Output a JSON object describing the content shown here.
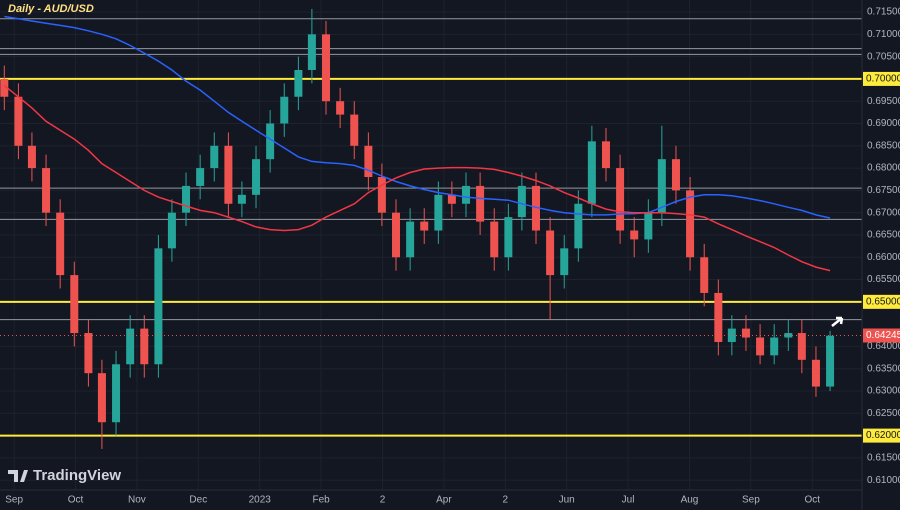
{
  "chart_data": {
    "type": "candlestick",
    "title": "Daily - AUD/USD",
    "brand": "TradingView",
    "grid": true,
    "up_color": "#26a69a",
    "down_color": "#ef5350",
    "xlim": [
      -0.23,
      13.81
    ],
    "ylim": [
      0.6078,
      0.7177
    ],
    "xticks": [
      {
        "value": 0,
        "label": "Sep"
      },
      {
        "value": 1,
        "label": "Oct"
      },
      {
        "value": 2,
        "label": "Nov"
      },
      {
        "value": 3,
        "label": "Dec"
      },
      {
        "value": 4,
        "label": "2023"
      },
      {
        "value": 5,
        "label": "Feb"
      },
      {
        "value": 6,
        "label": "2"
      },
      {
        "value": 7,
        "label": "Apr"
      },
      {
        "value": 8,
        "label": "2"
      },
      {
        "value": 9,
        "label": "Jun"
      },
      {
        "value": 10,
        "label": "Jul"
      },
      {
        "value": 11,
        "label": "Aug"
      },
      {
        "value": 12,
        "label": "Sep"
      },
      {
        "value": 13,
        "label": "Oct"
      }
    ],
    "yticks": [
      {
        "value": 0.715,
        "label": "0.71500"
      },
      {
        "value": 0.71,
        "label": "0.71000"
      },
      {
        "value": 0.705,
        "label": "0.70500"
      },
      {
        "value": 0.695,
        "label": "0.69500"
      },
      {
        "value": 0.69,
        "label": "0.69000"
      },
      {
        "value": 0.685,
        "label": "0.68500"
      },
      {
        "value": 0.68,
        "label": "0.68000"
      },
      {
        "value": 0.675,
        "label": "0.67500"
      },
      {
        "value": 0.67,
        "label": "0.67000"
      },
      {
        "value": 0.665,
        "label": "0.66500"
      },
      {
        "value": 0.66,
        "label": "0.66000"
      },
      {
        "value": 0.655,
        "label": "0.65500"
      },
      {
        "value": 0.64,
        "label": "0.64000"
      },
      {
        "value": 0.635,
        "label": "0.63500"
      },
      {
        "value": 0.63,
        "label": "0.63000"
      },
      {
        "value": 0.625,
        "label": "0.62500"
      },
      {
        "value": 0.615,
        "label": "0.61500"
      },
      {
        "value": 0.61,
        "label": "0.61000"
      }
    ],
    "key_levels": [
      {
        "value": 0.7,
        "label": "0.70000"
      },
      {
        "value": 0.65,
        "label": "0.65000"
      },
      {
        "value": 0.62,
        "label": "0.62000"
      }
    ],
    "key_level_color": "#ffeb3b",
    "reference_lines": [
      0.7135,
      0.7068,
      0.7055,
      0.6755,
      0.6685,
      0.646
    ],
    "last_price": {
      "value": 0.64245,
      "label": "0.64245"
    },
    "x": [
      -0.16,
      0.07,
      0.29,
      0.52,
      0.75,
      0.98,
      1.21,
      1.43,
      1.66,
      1.89,
      2.12,
      2.35,
      2.57,
      2.8,
      3.03,
      3.26,
      3.49,
      3.71,
      3.94,
      4.17,
      4.4,
      4.63,
      4.85,
      5.08,
      5.31,
      5.54,
      5.77,
      5.99,
      6.22,
      6.45,
      6.68,
      6.91,
      7.13,
      7.36,
      7.59,
      7.82,
      8.05,
      8.27,
      8.5,
      8.73,
      8.96,
      9.19,
      9.41,
      9.64,
      9.87,
      10.1,
      10.33,
      10.55,
      10.78,
      11.01,
      11.24,
      11.47,
      11.69,
      11.92,
      12.15,
      12.38,
      12.61,
      12.83,
      13.06,
      13.29
    ],
    "open": [
      0.7,
      0.696,
      0.685,
      0.68,
      0.67,
      0.656,
      0.643,
      0.634,
      0.623,
      0.636,
      0.644,
      0.636,
      0.662,
      0.67,
      0.676,
      0.68,
      0.685,
      0.672,
      0.674,
      0.682,
      0.69,
      0.696,
      0.702,
      0.71,
      0.695,
      0.692,
      0.685,
      0.678,
      0.67,
      0.66,
      0.668,
      0.666,
      0.674,
      0.672,
      0.676,
      0.668,
      0.66,
      0.669,
      0.676,
      0.666,
      0.656,
      0.662,
      0.672,
      0.686,
      0.68,
      0.666,
      0.664,
      0.67,
      0.682,
      0.675,
      0.66,
      0.652,
      0.641,
      0.644,
      0.642,
      0.638,
      0.642,
      0.643,
      0.637,
      0.631
    ],
    "high": [
      0.703,
      0.699,
      0.688,
      0.683,
      0.673,
      0.659,
      0.646,
      0.637,
      0.639,
      0.647,
      0.647,
      0.665,
      0.673,
      0.679,
      0.683,
      0.688,
      0.688,
      0.677,
      0.685,
      0.693,
      0.699,
      0.705,
      0.7157,
      0.713,
      0.698,
      0.695,
      0.688,
      0.681,
      0.673,
      0.671,
      0.671,
      0.677,
      0.677,
      0.679,
      0.679,
      0.671,
      0.672,
      0.679,
      0.679,
      0.669,
      0.665,
      0.675,
      0.6895,
      0.689,
      0.683,
      0.669,
      0.673,
      0.6895,
      0.685,
      0.678,
      0.663,
      0.655,
      0.647,
      0.647,
      0.645,
      0.645,
      0.646,
      0.646,
      0.64,
      0.6435
    ],
    "low": [
      0.693,
      0.682,
      0.677,
      0.667,
      0.653,
      0.64,
      0.631,
      0.617,
      0.62,
      0.633,
      0.633,
      0.633,
      0.659,
      0.667,
      0.673,
      0.677,
      0.669,
      0.669,
      0.671,
      0.679,
      0.687,
      0.693,
      0.699,
      0.692,
      0.689,
      0.682,
      0.675,
      0.667,
      0.657,
      0.657,
      0.663,
      0.663,
      0.669,
      0.669,
      0.665,
      0.657,
      0.657,
      0.666,
      0.663,
      0.646,
      0.653,
      0.659,
      0.669,
      0.677,
      0.663,
      0.66,
      0.661,
      0.667,
      0.672,
      0.657,
      0.649,
      0.638,
      0.638,
      0.639,
      0.636,
      0.636,
      0.639,
      0.634,
      0.6287,
      0.63
    ],
    "close": [
      0.696,
      0.685,
      0.68,
      0.67,
      0.656,
      0.643,
      0.634,
      0.623,
      0.636,
      0.644,
      0.636,
      0.662,
      0.67,
      0.676,
      0.68,
      0.685,
      0.672,
      0.674,
      0.682,
      0.69,
      0.696,
      0.702,
      0.71,
      0.695,
      0.692,
      0.685,
      0.678,
      0.67,
      0.66,
      0.668,
      0.666,
      0.674,
      0.672,
      0.676,
      0.668,
      0.66,
      0.669,
      0.676,
      0.666,
      0.656,
      0.662,
      0.672,
      0.686,
      0.68,
      0.666,
      0.664,
      0.67,
      0.682,
      0.675,
      0.66,
      0.652,
      0.641,
      0.644,
      0.642,
      0.638,
      0.642,
      0.643,
      0.637,
      0.631,
      0.6424
    ],
    "moving_averages": [
      {
        "color": "#2962ff",
        "values": [
          0.714,
          0.7135,
          0.713,
          0.7125,
          0.712,
          0.7115,
          0.7108,
          0.71,
          0.709,
          0.7075,
          0.7058,
          0.704,
          0.702,
          0.6995,
          0.6975,
          0.695,
          0.6925,
          0.6905,
          0.6885,
          0.6865,
          0.6845,
          0.6825,
          0.6815,
          0.6812,
          0.681,
          0.6806,
          0.6795,
          0.6782,
          0.677,
          0.676,
          0.6752,
          0.6745,
          0.674,
          0.6735,
          0.6732,
          0.673,
          0.6728,
          0.672,
          0.6712,
          0.6705,
          0.67,
          0.6697,
          0.6695,
          0.6695,
          0.6697,
          0.6698,
          0.67,
          0.6712,
          0.6725,
          0.6735,
          0.674,
          0.674,
          0.6738,
          0.6733,
          0.6727,
          0.672,
          0.6712,
          0.6705,
          0.6695,
          0.6688
        ]
      },
      {
        "color": "#f23645",
        "values": [
          0.6985,
          0.696,
          0.6935,
          0.6905,
          0.6885,
          0.6865,
          0.684,
          0.681,
          0.679,
          0.677,
          0.675,
          0.6735,
          0.6725,
          0.6715,
          0.6705,
          0.67,
          0.669,
          0.668,
          0.6668,
          0.6662,
          0.666,
          0.6662,
          0.6672,
          0.669,
          0.6705,
          0.672,
          0.6745,
          0.6762,
          0.6778,
          0.679,
          0.6798,
          0.68,
          0.6801,
          0.6801,
          0.68,
          0.6797,
          0.679,
          0.6782,
          0.6772,
          0.676,
          0.6745,
          0.6733,
          0.672,
          0.6708,
          0.6702,
          0.67,
          0.67,
          0.67,
          0.6698,
          0.6695,
          0.669,
          0.6675,
          0.6662,
          0.6648,
          0.6635,
          0.6622,
          0.6605,
          0.659,
          0.6578,
          0.657
        ]
      }
    ]
  }
}
